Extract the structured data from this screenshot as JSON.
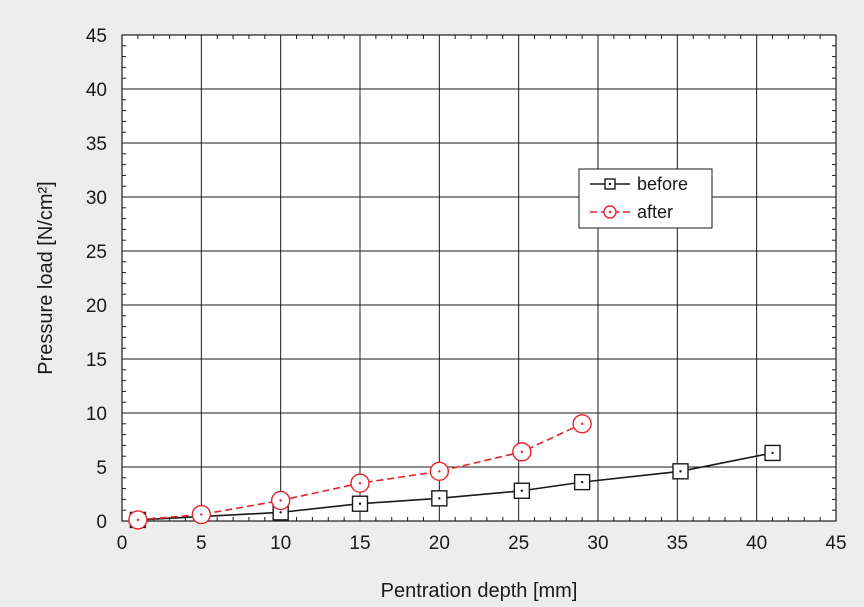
{
  "chart_data": {
    "type": "line",
    "xlabel": "Pentration depth [mm]",
    "ylabel": "Pressure load [N/cm²]",
    "xlim": [
      0,
      45
    ],
    "ylim": [
      0,
      45
    ],
    "xticks": [
      0,
      5,
      10,
      15,
      20,
      25,
      30,
      35,
      40,
      45
    ],
    "yticks": [
      0,
      5,
      10,
      15,
      20,
      25,
      30,
      35,
      40,
      45
    ],
    "grid": true,
    "legend_position": "right, upper-middle",
    "series": [
      {
        "name": "before",
        "color": "#1a1a1a",
        "line_style": "solid",
        "marker": "square-dot",
        "x": [
          1,
          10,
          15,
          20,
          25.2,
          29,
          35.2,
          41
        ],
        "y": [
          0.1,
          0.8,
          1.6,
          2.1,
          2.8,
          3.6,
          4.6,
          6.3
        ]
      },
      {
        "name": "after",
        "color": "#e8222a",
        "line_style": "dashed",
        "marker": "circle-dot",
        "x": [
          1,
          5,
          10,
          15,
          20,
          25.2,
          29
        ],
        "y": [
          0.1,
          0.6,
          1.9,
          3.5,
          4.6,
          6.4,
          9.0
        ]
      }
    ]
  }
}
